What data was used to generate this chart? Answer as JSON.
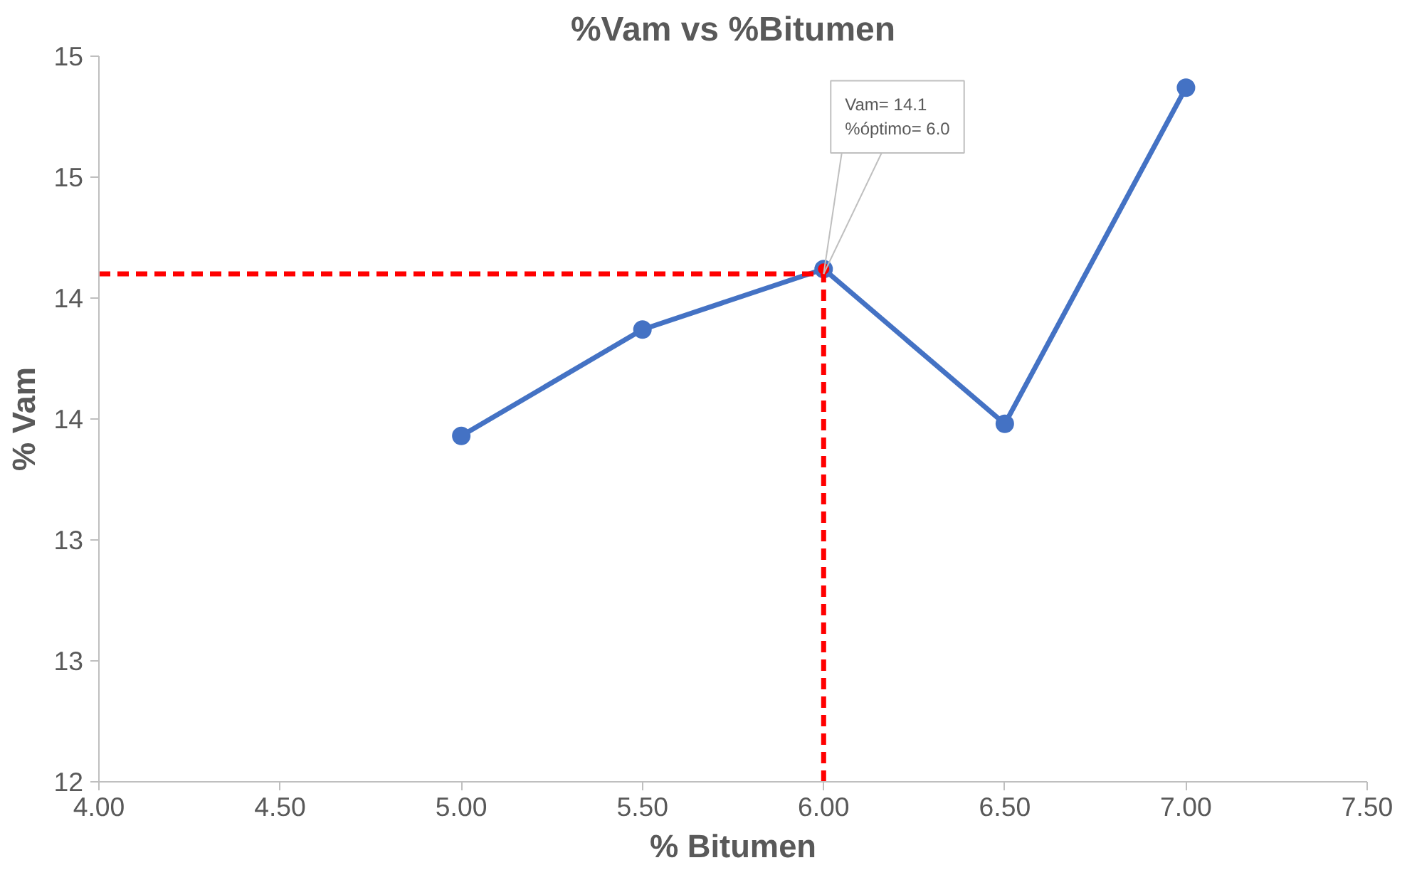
{
  "chart_data": {
    "type": "line",
    "title": "%Vam vs %Bitumen",
    "xlabel": "% Bitumen",
    "ylabel": "% Vam",
    "xlim": [
      4.0,
      7.5
    ],
    "xticks": [
      {
        "value": 4.0,
        "label": "4.00"
      },
      {
        "value": 4.5,
        "label": "4.50"
      },
      {
        "value": 5.0,
        "label": "5.00"
      },
      {
        "value": 5.5,
        "label": "5.50"
      },
      {
        "value": 6.0,
        "label": "6.00"
      },
      {
        "value": 6.5,
        "label": "6.50"
      },
      {
        "value": 7.0,
        "label": "7.00"
      },
      {
        "value": 7.5,
        "label": "7.50"
      }
    ],
    "ylim": [
      12,
      15
    ],
    "yticks": [
      12,
      {
        "value": 12.5,
        "label": "13"
      },
      13,
      {
        "value": 13.5,
        "label": "14"
      },
      14,
      {
        "value": 14.5,
        "label": "15"
      },
      15
    ],
    "grid": false,
    "series": [
      {
        "color": "#4472c4",
        "x": [
          5.0,
          5.5,
          6.0,
          6.5,
          7.0
        ],
        "values": [
          13.43,
          13.87,
          14.12,
          13.48,
          14.87
        ],
        "marker": "circle",
        "line_style": "solid"
      },
      {
        "type": "line",
        "color": "#ff0000",
        "x": [
          4.0,
          6.0
        ],
        "values": [
          14.1,
          14.1
        ],
        "marker": "none",
        "line_style": "dashed"
      },
      {
        "type": "line",
        "color": "#ff0000",
        "x": [
          6.0,
          6.0
        ],
        "values": [
          12,
          14.1
        ],
        "marker": "none",
        "line_style": "dashed"
      },
      {
        "type": "scatter",
        "color": "#ff0000",
        "x": [
          6.0
        ],
        "values": [
          14.12
        ],
        "marker": "circle"
      }
    ],
    "annotations": [
      {
        "text": "Vam= 14.1\n%óptimo= 6.0",
        "x": 6.0,
        "y": 14.1
      }
    ]
  }
}
